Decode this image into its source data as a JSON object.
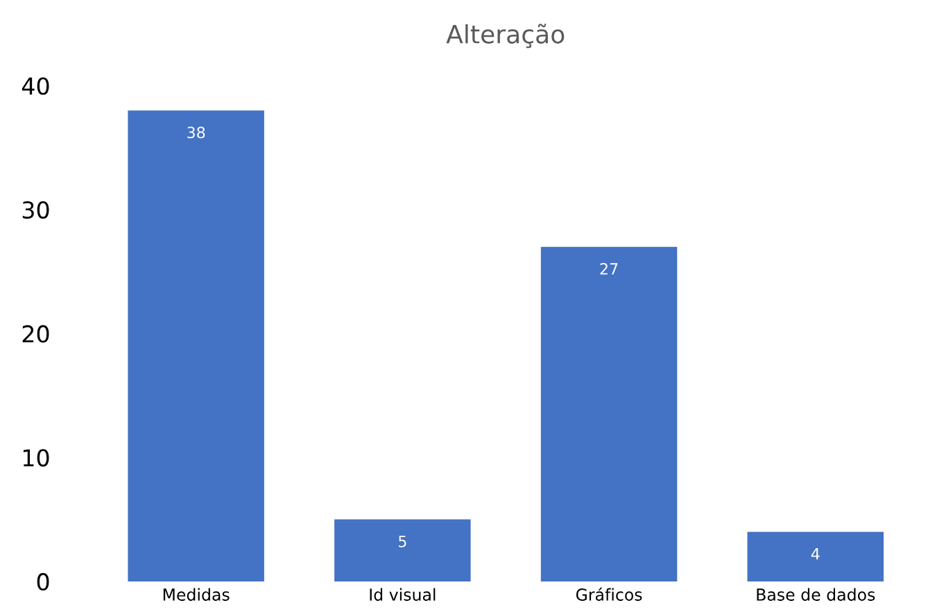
{
  "chart_data": {
    "type": "bar",
    "title": "Alteração",
    "categories": [
      "Medidas",
      "Id visual",
      "Gráficos",
      "Base de dados"
    ],
    "values": [
      38,
      5,
      27,
      4
    ],
    "color": "#4472c4",
    "ylim": [
      0,
      40
    ],
    "yticks": [
      0,
      10,
      20,
      30,
      40
    ],
    "grid": false,
    "data_labels": true
  }
}
